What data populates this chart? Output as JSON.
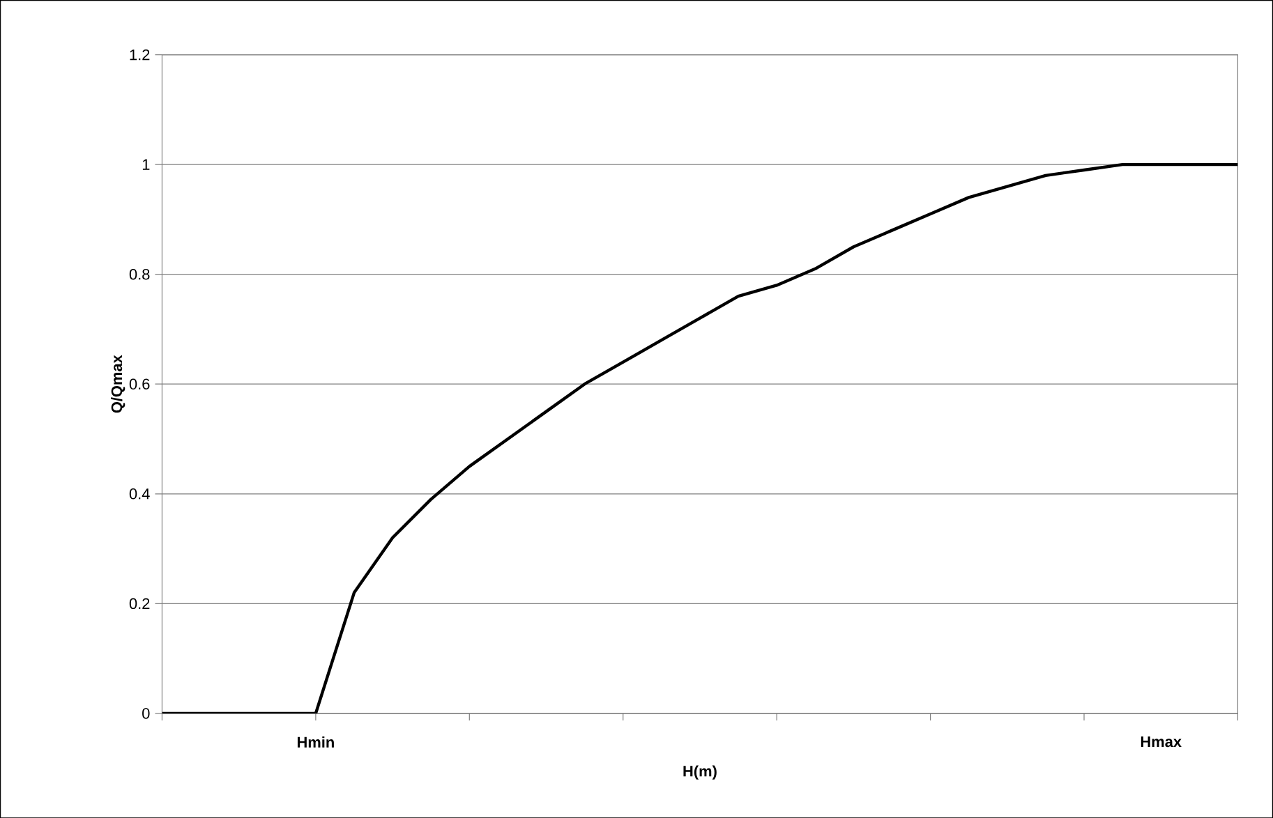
{
  "chart_data": {
    "type": "line",
    "xlabel": "H(m)",
    "ylabel": "Q/Qmax",
    "categories": [
      null,
      null,
      null,
      null,
      "Hmin",
      null,
      null,
      null,
      null,
      null,
      null,
      null,
      null,
      null,
      null,
      null,
      null,
      null,
      null,
      null,
      null,
      null,
      null,
      null,
      null,
      null,
      "Hmax",
      null,
      null
    ],
    "series": [
      {
        "color": "#000000",
        "values": [
          0,
          0,
          0,
          0,
          0,
          0.22,
          0.32,
          0.39,
          0.45,
          0.5,
          0.55,
          0.6,
          0.64,
          0.68,
          0.72,
          0.76,
          0.78,
          0.81,
          0.85,
          0.88,
          0.91,
          0.94,
          0.96,
          0.98,
          0.99,
          1,
          1,
          1,
          1
        ]
      }
    ],
    "ylim": [
      0,
      1.2
    ],
    "yticks": [
      0,
      0.2,
      0.4,
      0.6,
      0.8,
      1,
      1.2
    ],
    "grid": "y",
    "marker": "none",
    "line_style": "solid"
  }
}
